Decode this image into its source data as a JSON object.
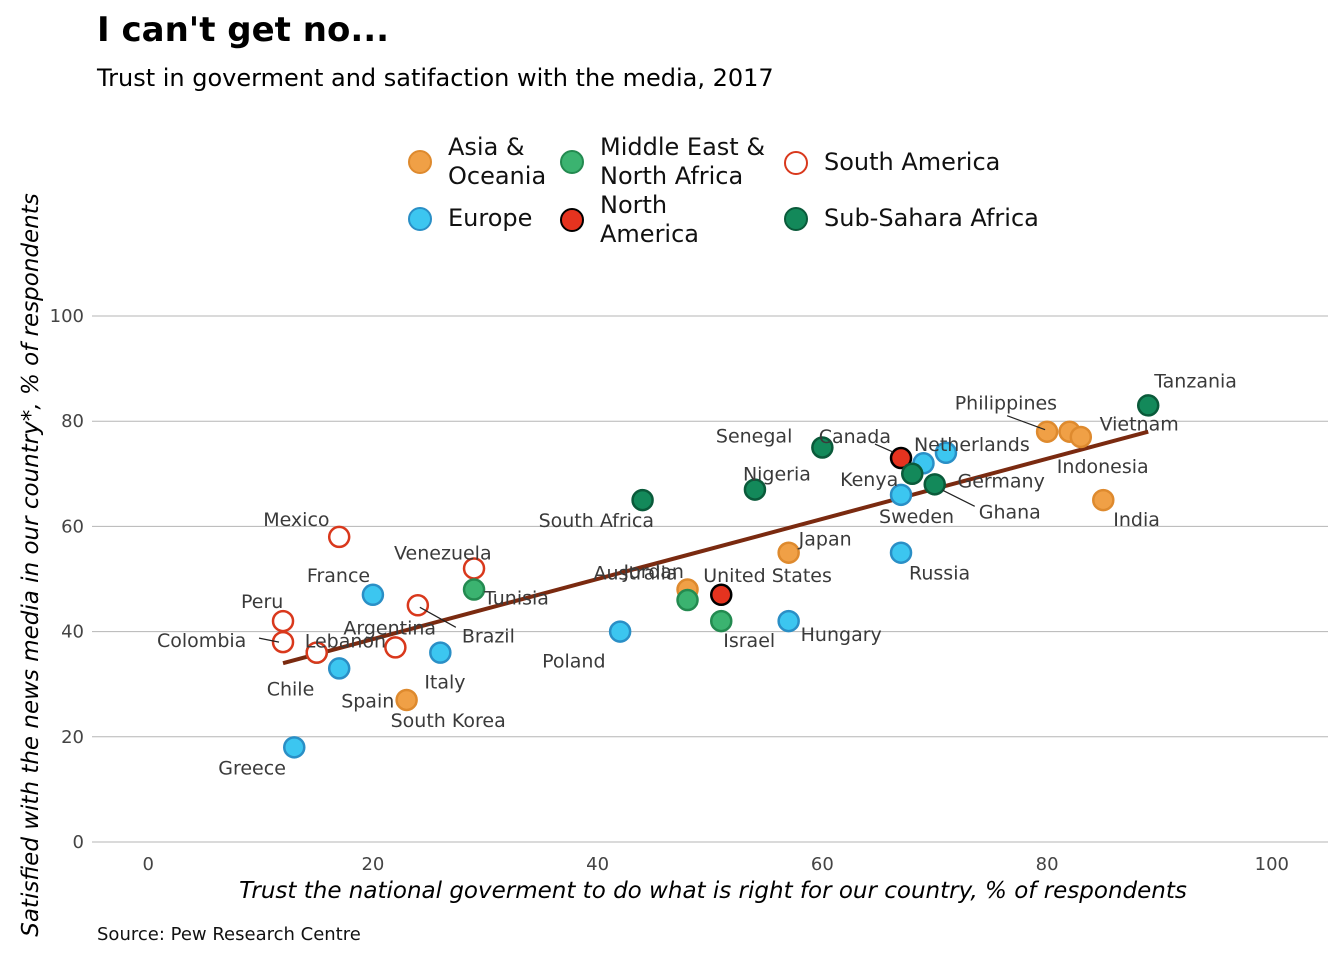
{
  "title": "I can't get no...",
  "subtitle": "Trust in goverment and satifaction with the media, 2017",
  "source": "Source: Pew Research Centre",
  "chart_data": {
    "type": "scatter",
    "xlabel": "Trust the national goverment to do what is right for our country, % of respondents",
    "ylabel": "Satisfied with the news media in our country*, % of respondents",
    "xlim": [
      -5,
      105
    ],
    "ylim": [
      0,
      100
    ],
    "x_ticks": [
      "0",
      "20",
      "40",
      "60",
      "80",
      "100"
    ],
    "y_ticks": [
      "0",
      "20",
      "40",
      "60",
      "80",
      "100"
    ],
    "grid": "horizontal",
    "legend_position": "top",
    "trend_line": {
      "x": [
        12,
        89
      ],
      "y": [
        34,
        78
      ],
      "color": "#7a2a10"
    },
    "groups": [
      {
        "name": "Asia & Oceania",
        "label": "Asia &\nOceania",
        "fill": "#f0a046",
        "stroke": "#de8a2e",
        "hollow": false
      },
      {
        "name": "Europe",
        "label": "Europe",
        "fill": "#3cc6f0",
        "stroke": "#2a8fc6",
        "hollow": false
      },
      {
        "name": "Middle East & North Africa",
        "label": "Middle East &\nNorth Africa",
        "fill": "#3bb370",
        "stroke": "#238a50",
        "hollow": false
      },
      {
        "name": "North America",
        "label": "North\nAmerica",
        "fill": "#e5331f",
        "stroke": "#000000",
        "hollow": false
      },
      {
        "name": "South America",
        "label": "South America",
        "fill": "#ffffff",
        "stroke": "#d9381c",
        "hollow": true
      },
      {
        "name": "Sub-Sahara Africa",
        "label": "Sub-Sahara Africa",
        "fill": "#13895a",
        "stroke": "#0a5a3a",
        "hollow": false
      }
    ],
    "points": [
      {
        "label": "Tanzania",
        "group": "Sub-Sahara Africa",
        "x": 89,
        "y": 83
      },
      {
        "label": "Philippines",
        "group": "Asia & Oceania",
        "x": 80,
        "y": 78
      },
      {
        "label": "Vietnam",
        "group": "Asia & Oceania",
        "x": 82,
        "y": 78
      },
      {
        "label": "Indonesia",
        "group": "Asia & Oceania",
        "x": 83,
        "y": 77
      },
      {
        "label": "India",
        "group": "Asia & Oceania",
        "x": 85,
        "y": 65
      },
      {
        "label": "Netherlands",
        "group": "Europe",
        "x": 71,
        "y": 74
      },
      {
        "label": "Germany",
        "group": "Europe",
        "x": 69,
        "y": 72
      },
      {
        "label": "Canada",
        "group": "North America",
        "x": 67,
        "y": 73
      },
      {
        "label": "Kenya",
        "group": "Sub-Sahara Africa",
        "x": 68,
        "y": 70
      },
      {
        "label": "Ghana",
        "group": "Sub-Sahara Africa",
        "x": 70,
        "y": 68
      },
      {
        "label": "Sweden",
        "group": "Europe",
        "x": 67,
        "y": 66
      },
      {
        "label": "Russia",
        "group": "Europe",
        "x": 67,
        "y": 55
      },
      {
        "label": "Senegal",
        "group": "Sub-Sahara Africa",
        "x": 60,
        "y": 75
      },
      {
        "label": "Nigeria",
        "group": "Sub-Sahara Africa",
        "x": 54,
        "y": 67
      },
      {
        "label": "Japan",
        "group": "Asia & Oceania",
        "x": 57,
        "y": 55
      },
      {
        "label": "South Africa",
        "group": "Sub-Sahara Africa",
        "x": 44,
        "y": 65
      },
      {
        "label": "Australia",
        "group": "Asia & Oceania",
        "x": 48,
        "y": 48
      },
      {
        "label": "United States",
        "group": "North America",
        "x": 51,
        "y": 47
      },
      {
        "label": "Jordan",
        "group": "Middle East & North Africa",
        "x": 48,
        "y": 46
      },
      {
        "label": "Israel",
        "group": "Middle East & North Africa",
        "x": 51,
        "y": 42
      },
      {
        "label": "Hungary",
        "group": "Europe",
        "x": 57,
        "y": 42
      },
      {
        "label": "Poland",
        "group": "Europe",
        "x": 42,
        "y": 40
      },
      {
        "label": "Mexico",
        "group": "South America",
        "x": 17,
        "y": 58
      },
      {
        "label": "Venezuela",
        "group": "South America",
        "x": 29,
        "y": 52
      },
      {
        "label": "Tunisia",
        "group": "Middle East & North Africa",
        "x": 29,
        "y": 48
      },
      {
        "label": "France",
        "group": "Europe",
        "x": 20,
        "y": 47
      },
      {
        "label": "Argentina",
        "group": "South America",
        "x": 22,
        "y": 37
      },
      {
        "label": "Brazil",
        "group": "South America",
        "x": 24,
        "y": 45
      },
      {
        "label": "Peru",
        "group": "South America",
        "x": 12,
        "y": 42
      },
      {
        "label": "Colombia",
        "group": "South America",
        "x": 12,
        "y": 38
      },
      {
        "label": "Lebanon",
        "group": "Middle East & North Africa",
        "x": 15,
        "y": 36
      },
      {
        "label": "Chile",
        "group": "South America",
        "x": 15,
        "y": 36
      },
      {
        "label": "Spain",
        "group": "Europe",
        "x": 17,
        "y": 33
      },
      {
        "label": "Italy",
        "group": "Europe",
        "x": 26,
        "y": 36
      },
      {
        "label": "South Korea",
        "group": "Asia & Oceania",
        "x": 23,
        "y": 27
      },
      {
        "label": "Greece",
        "group": "Europe",
        "x": 13,
        "y": 18
      }
    ]
  }
}
